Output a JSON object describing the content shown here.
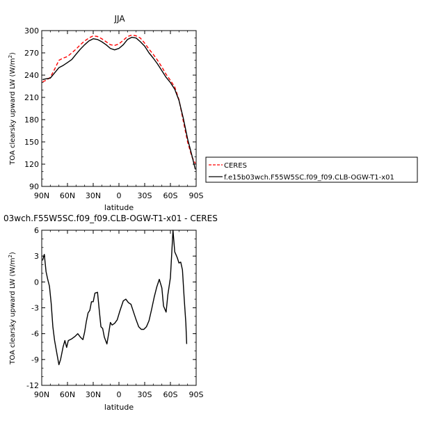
{
  "chart_data": [
    {
      "type": "line",
      "title": "JJA",
      "xlabel": "latitude",
      "ylabel": "TOA clearsky upward LW (W/m²)",
      "xlim": [
        -90,
        90
      ],
      "ylim": [
        90,
        300
      ],
      "x_ticks": [
        "90N",
        "60N",
        "30N",
        "0",
        "30S",
        "60S",
        "90S"
      ],
      "y_ticks": [
        "90",
        "120",
        "150",
        "180",
        "210",
        "240",
        "270",
        "300"
      ],
      "legend_position": "right",
      "series": [
        {
          "name": "CERES",
          "style": "dashed",
          "color": "#ff0000",
          "points": [
            [
              -89,
              231
            ],
            [
              -85,
              233
            ],
            [
              -80,
              237
            ],
            [
              -75,
              248
            ],
            [
              -70,
              260
            ],
            [
              -65,
              263
            ],
            [
              -60,
              265
            ],
            [
              -55,
              270
            ],
            [
              -50,
              275
            ],
            [
              -45,
              281
            ],
            [
              -40,
              286
            ],
            [
              -35,
              290
            ],
            [
              -30,
              293
            ],
            [
              -25,
              292
            ],
            [
              -20,
              289
            ],
            [
              -15,
              285
            ],
            [
              -10,
              281
            ],
            [
              -5,
              280
            ],
            [
              0,
              282
            ],
            [
              5,
              287
            ],
            [
              10,
              292
            ],
            [
              15,
              294
            ],
            [
              20,
              293
            ],
            [
              25,
              290
            ],
            [
              30,
              283
            ],
            [
              35,
              275
            ],
            [
              40,
              268
            ],
            [
              45,
              260
            ],
            [
              50,
              251
            ],
            [
              55,
              241
            ],
            [
              60,
              233
            ],
            [
              65,
              224
            ],
            [
              70,
              207
            ],
            [
              75,
              178
            ],
            [
              80,
              150
            ],
            [
              85,
              130
            ],
            [
              89,
              121
            ]
          ]
        },
        {
          "name": "f.e15b03wch.F55W5SC.f09_f09.CLB-OGW-T1-x01",
          "style": "solid",
          "color": "#000000",
          "points": [
            [
              -89,
              234
            ],
            [
              -85,
              235
            ],
            [
              -80,
              236
            ],
            [
              -75,
              243
            ],
            [
              -70,
              250
            ],
            [
              -65,
              253
            ],
            [
              -60,
              257
            ],
            [
              -55,
              261
            ],
            [
              -50,
              268
            ],
            [
              -45,
              275
            ],
            [
              -40,
              281
            ],
            [
              -35,
              286
            ],
            [
              -30,
              289
            ],
            [
              -25,
              288
            ],
            [
              -20,
              285
            ],
            [
              -15,
              281
            ],
            [
              -10,
              276
            ],
            [
              -5,
              274
            ],
            [
              0,
              276
            ],
            [
              5,
              281
            ],
            [
              10,
              288
            ],
            [
              15,
              291
            ],
            [
              20,
              290
            ],
            [
              25,
              285
            ],
            [
              30,
              279
            ],
            [
              35,
              270
            ],
            [
              40,
              263
            ],
            [
              45,
              255
            ],
            [
              50,
              246
            ],
            [
              55,
              237
            ],
            [
              60,
              230
            ],
            [
              65,
              221
            ],
            [
              70,
              206
            ],
            [
              75,
              182
            ],
            [
              80,
              154
            ],
            [
              85,
              132
            ],
            [
              89,
              113
            ]
          ]
        }
      ]
    },
    {
      "type": "line",
      "title": "03wch.F55W5SC.f09_f09.CLB-OGW-T1-x01 - CERES",
      "xlabel": "latitude",
      "ylabel": "TOA clearsky upward LW (W/m²)",
      "xlim": [
        -90,
        90
      ],
      "ylim": [
        -12,
        6
      ],
      "x_ticks": [
        "90N",
        "60N",
        "30N",
        "0",
        "30S",
        "60S",
        "90S"
      ],
      "y_ticks": [
        "-12",
        "-9",
        "-6",
        "-3",
        "0",
        "3",
        "6"
      ],
      "series": [
        {
          "color": "#000000",
          "style": "solid",
          "points": [
            [
              -89,
              2.5
            ],
            [
              -87,
              3.2
            ],
            [
              -85,
              1.2
            ],
            [
              -83,
              0.3
            ],
            [
              -81,
              -0.5
            ],
            [
              -79,
              -2.5
            ],
            [
              -77,
              -5.2
            ],
            [
              -75,
              -6.8
            ],
            [
              -72,
              -8.5
            ],
            [
              -70,
              -9.6
            ],
            [
              -68,
              -9.0
            ],
            [
              -65,
              -7.5
            ],
            [
              -63,
              -6.8
            ],
            [
              -61,
              -7.6
            ],
            [
              -59,
              -6.8
            ],
            [
              -55,
              -6.6
            ],
            [
              -51,
              -6.3
            ],
            [
              -48,
              -6.0
            ],
            [
              -45,
              -6.4
            ],
            [
              -42,
              -6.7
            ],
            [
              -40,
              -5.8
            ],
            [
              -38,
              -4.6
            ],
            [
              -36,
              -3.6
            ],
            [
              -34,
              -3.3
            ],
            [
              -32,
              -2.3
            ],
            [
              -30,
              -2.3
            ],
            [
              -28,
              -1.3
            ],
            [
              -25,
              -1.2
            ],
            [
              -23,
              -3.2
            ],
            [
              -21,
              -5.2
            ],
            [
              -19,
              -5.4
            ],
            [
              -17,
              -6.4
            ],
            [
              -14,
              -7.2
            ],
            [
              -12,
              -6.0
            ],
            [
              -10,
              -4.7
            ],
            [
              -8,
              -5.0
            ],
            [
              -5,
              -4.8
            ],
            [
              -2,
              -4.4
            ],
            [
              1,
              -3.4
            ],
            [
              5,
              -2.2
            ],
            [
              8,
              -2.0
            ],
            [
              11,
              -2.4
            ],
            [
              14,
              -2.6
            ],
            [
              17,
              -3.5
            ],
            [
              20,
              -4.4
            ],
            [
              23,
              -5.2
            ],
            [
              26,
              -5.5
            ],
            [
              29,
              -5.5
            ],
            [
              32,
              -5.2
            ],
            [
              35,
              -4.5
            ],
            [
              38,
              -3.2
            ],
            [
              41,
              -1.8
            ],
            [
              44,
              -0.6
            ],
            [
              47,
              0.3
            ],
            [
              50,
              -0.7
            ],
            [
              52,
              -2.8
            ],
            [
              55,
              -3.5
            ],
            [
              57,
              -1.5
            ],
            [
              60,
              0.5
            ],
            [
              63,
              6.0
            ],
            [
              65,
              3.5
            ],
            [
              68,
              2.8
            ],
            [
              70,
              2.2
            ],
            [
              72,
              2.3
            ],
            [
              74,
              1.4
            ],
            [
              76,
              -1.8
            ],
            [
              78,
              -4.8
            ],
            [
              79,
              -7.2
            ]
          ]
        }
      ]
    }
  ]
}
